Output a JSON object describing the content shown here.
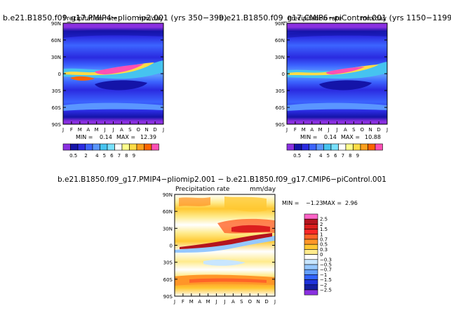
{
  "chart_data": [
    {
      "type": "heatmap",
      "title": "b.e21.B1850.f09_g17.PMIP4−pliomip2.001  (yrs  350−399)",
      "subtitle": "Precipitation rate",
      "units": "mm/day",
      "min_label": "MIN =",
      "min_value": "0.14",
      "max_label": "MAX =",
      "max_value": "12.39",
      "x_ticks": [
        "J",
        "F",
        "M",
        "A",
        "M",
        "J",
        "J",
        "A",
        "S",
        "O",
        "N",
        "D",
        "J"
      ],
      "y_ticks": [
        "90N",
        "60N",
        "30N",
        "0",
        "30S",
        "60S",
        "90S"
      ],
      "colorbar_labels": [
        "0.5",
        "2",
        "4",
        "5",
        "6",
        "7",
        "8",
        "9"
      ],
      "colorbar_colors": [
        "#8a30e0",
        "#1414a8",
        "#2a2ae0",
        "#3c64ff",
        "#5a96ff",
        "#46c3f0",
        "#78e0ff",
        "#ffffff",
        "#ffff8c",
        "#ffdc46",
        "#ffa01e",
        "#ff6400",
        "#ff50b4"
      ]
    },
    {
      "type": "heatmap",
      "title": "b.e21.B1850.f09_g17.CMIP6−piControl.001  (yrs  1150−1199)",
      "subtitle": "Precipitation rate",
      "units": "mm/day",
      "min_label": "MIN =",
      "min_value": "0.14",
      "max_label": "MAX =",
      "max_value": "10.88",
      "x_ticks": [
        "J",
        "F",
        "M",
        "A",
        "M",
        "J",
        "J",
        "A",
        "S",
        "O",
        "N",
        "D",
        "J"
      ],
      "y_ticks": [
        "90N",
        "60N",
        "30N",
        "0",
        "30S",
        "60S",
        "90S"
      ],
      "colorbar_labels": [
        "0.5",
        "2",
        "4",
        "5",
        "6",
        "7",
        "8",
        "9"
      ],
      "colorbar_colors": [
        "#8a30e0",
        "#1414a8",
        "#2a2ae0",
        "#3c64ff",
        "#5a96ff",
        "#46c3f0",
        "#78e0ff",
        "#ffffff",
        "#ffff8c",
        "#ffdc46",
        "#ffa01e",
        "#ff6400",
        "#ff50b4"
      ]
    },
    {
      "type": "heatmap",
      "title": "b.e21.B1850.f09_g17.PMIP4−pliomip2.001  −  b.e21.B1850.f09_g17.CMIP6−piControl.001",
      "subtitle": "Precipitation rate",
      "units": "mm/day",
      "min_label": "MIN =",
      "min_value": "−1.23",
      "max_label": "MAX =",
      "max_value": "2.96",
      "x_ticks": [
        "J",
        "F",
        "M",
        "A",
        "M",
        "J",
        "J",
        "A",
        "S",
        "O",
        "N",
        "D",
        "J"
      ],
      "y_ticks": [
        "90N",
        "60N",
        "30N",
        "0",
        "30S",
        "60S",
        "90S"
      ],
      "colorbar_labels": [
        "2.5",
        "2",
        "1.5",
        "1",
        "0.7",
        "0.5",
        "0.3",
        "0",
        "−0.3",
        "−0.5",
        "−0.7",
        "−1",
        "−1.5",
        "−2",
        "−2.5"
      ],
      "colorbar_colors": [
        "#ff64c8",
        "#b4141e",
        "#dc1e1e",
        "#ff2828",
        "#ff6428",
        "#ff9628",
        "#ffc832",
        "#ffeb8c",
        "#ffffff",
        "#c8e6ff",
        "#96c8ff",
        "#64a0ff",
        "#3264ff",
        "#1e32dc",
        "#141ea0",
        "#8a30e0"
      ]
    }
  ]
}
